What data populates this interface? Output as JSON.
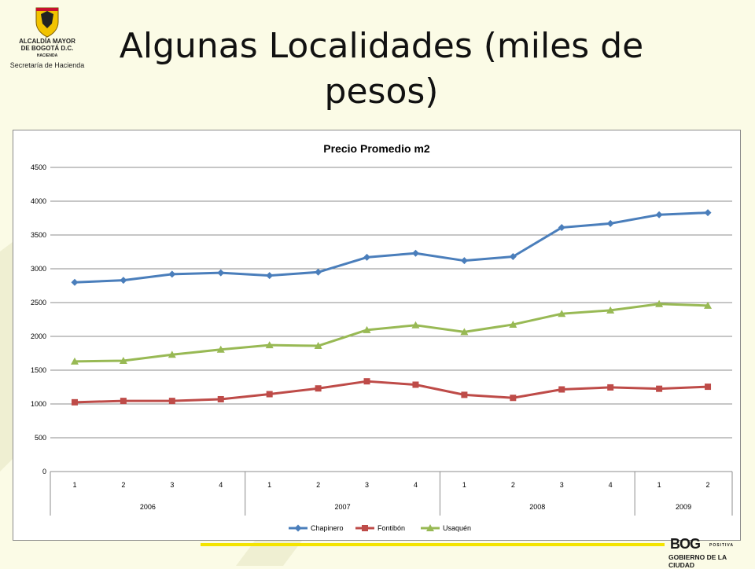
{
  "slide": {
    "title": "Algunas Localidades (miles de pesos)"
  },
  "logo": {
    "line1": "ALCALDÍA MAYOR",
    "line2": "DE BOGOTÁ D.C.",
    "line3": "HACIENDA",
    "line4": "Secretaría de Hacienda"
  },
  "footer_logo": {
    "brand": "BOG",
    "tagline": "POSITIVA",
    "subtitle": "GOBIERNO DE LA CIUDAD"
  },
  "colors": {
    "background": "#fbfbe6",
    "accent_yellow": "#f4e400",
    "chapinero": "#4a7ebb",
    "fontibon": "#be4b48",
    "usaquen": "#98b954"
  },
  "chart_data": {
    "type": "line",
    "title": "Precio Promedio m2",
    "xlabel": "",
    "ylabel": "",
    "ylim": [
      0,
      4500
    ],
    "yticks": [
      0,
      500,
      1000,
      1500,
      2000,
      2500,
      3000,
      3500,
      4000,
      4500
    ],
    "grid": true,
    "legend_position": "bottom",
    "categories": [
      "1",
      "2",
      "3",
      "4",
      "1",
      "2",
      "3",
      "4",
      "1",
      "2",
      "3",
      "4",
      "1",
      "2"
    ],
    "groups": [
      {
        "label": "2006",
        "count": 4
      },
      {
        "label": "2007",
        "count": 4
      },
      {
        "label": "2008",
        "count": 4
      },
      {
        "label": "2009",
        "count": 2
      }
    ],
    "series": [
      {
        "name": "Chapinero",
        "marker": "diamond",
        "color": "#4a7ebb",
        "values": [
          2800,
          2830,
          2920,
          2940,
          2900,
          2950,
          3170,
          3230,
          3120,
          3180,
          3610,
          3670,
          3800,
          3830
        ]
      },
      {
        "name": "Fontibón",
        "marker": "square",
        "color": "#be4b48",
        "values": [
          1025,
          1045,
          1045,
          1070,
          1145,
          1230,
          1335,
          1285,
          1135,
          1090,
          1215,
          1245,
          1225,
          1255
        ]
      },
      {
        "name": "Usaquén",
        "marker": "triangle",
        "color": "#98b954",
        "values": [
          1630,
          1640,
          1730,
          1805,
          1870,
          1860,
          2095,
          2165,
          2065,
          2175,
          2335,
          2385,
          2480,
          2455
        ]
      }
    ]
  }
}
